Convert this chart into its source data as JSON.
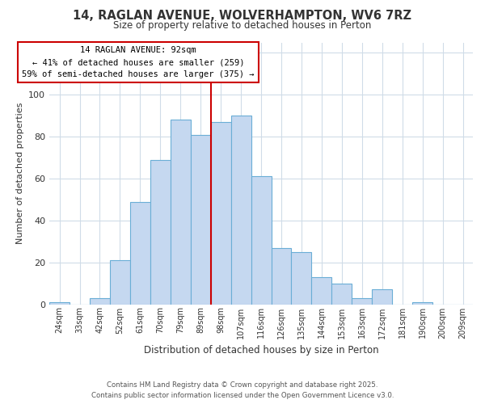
{
  "title": "14, RAGLAN AVENUE, WOLVERHAMPTON, WV6 7RZ",
  "subtitle": "Size of property relative to detached houses in Perton",
  "xlabel": "Distribution of detached houses by size in Perton",
  "ylabel": "Number of detached properties",
  "bar_labels": [
    "24sqm",
    "33sqm",
    "42sqm",
    "52sqm",
    "61sqm",
    "70sqm",
    "79sqm",
    "89sqm",
    "98sqm",
    "107sqm",
    "116sqm",
    "126sqm",
    "135sqm",
    "144sqm",
    "153sqm",
    "163sqm",
    "172sqm",
    "181sqm",
    "190sqm",
    "200sqm",
    "209sqm"
  ],
  "bar_values": [
    1,
    0,
    3,
    21,
    49,
    69,
    88,
    81,
    87,
    90,
    61,
    27,
    25,
    13,
    10,
    3,
    7,
    0,
    1,
    0,
    0
  ],
  "bar_color": "#c5d8f0",
  "bar_edge_color": "#6aaed6",
  "ylim": [
    0,
    125
  ],
  "yticks": [
    0,
    20,
    40,
    60,
    80,
    100,
    120
  ],
  "vline_color": "#cc0000",
  "annotation_title": "14 RAGLAN AVENUE: 92sqm",
  "annotation_line1": "← 41% of detached houses are smaller (259)",
  "annotation_line2": "59% of semi-detached houses are larger (375) →",
  "annotation_box_color": "#cc0000",
  "footer_line1": "Contains HM Land Registry data © Crown copyright and database right 2025.",
  "footer_line2": "Contains public sector information licensed under the Open Government Licence v3.0.",
  "bg_color": "#ffffff",
  "grid_color": "#d0dce8"
}
